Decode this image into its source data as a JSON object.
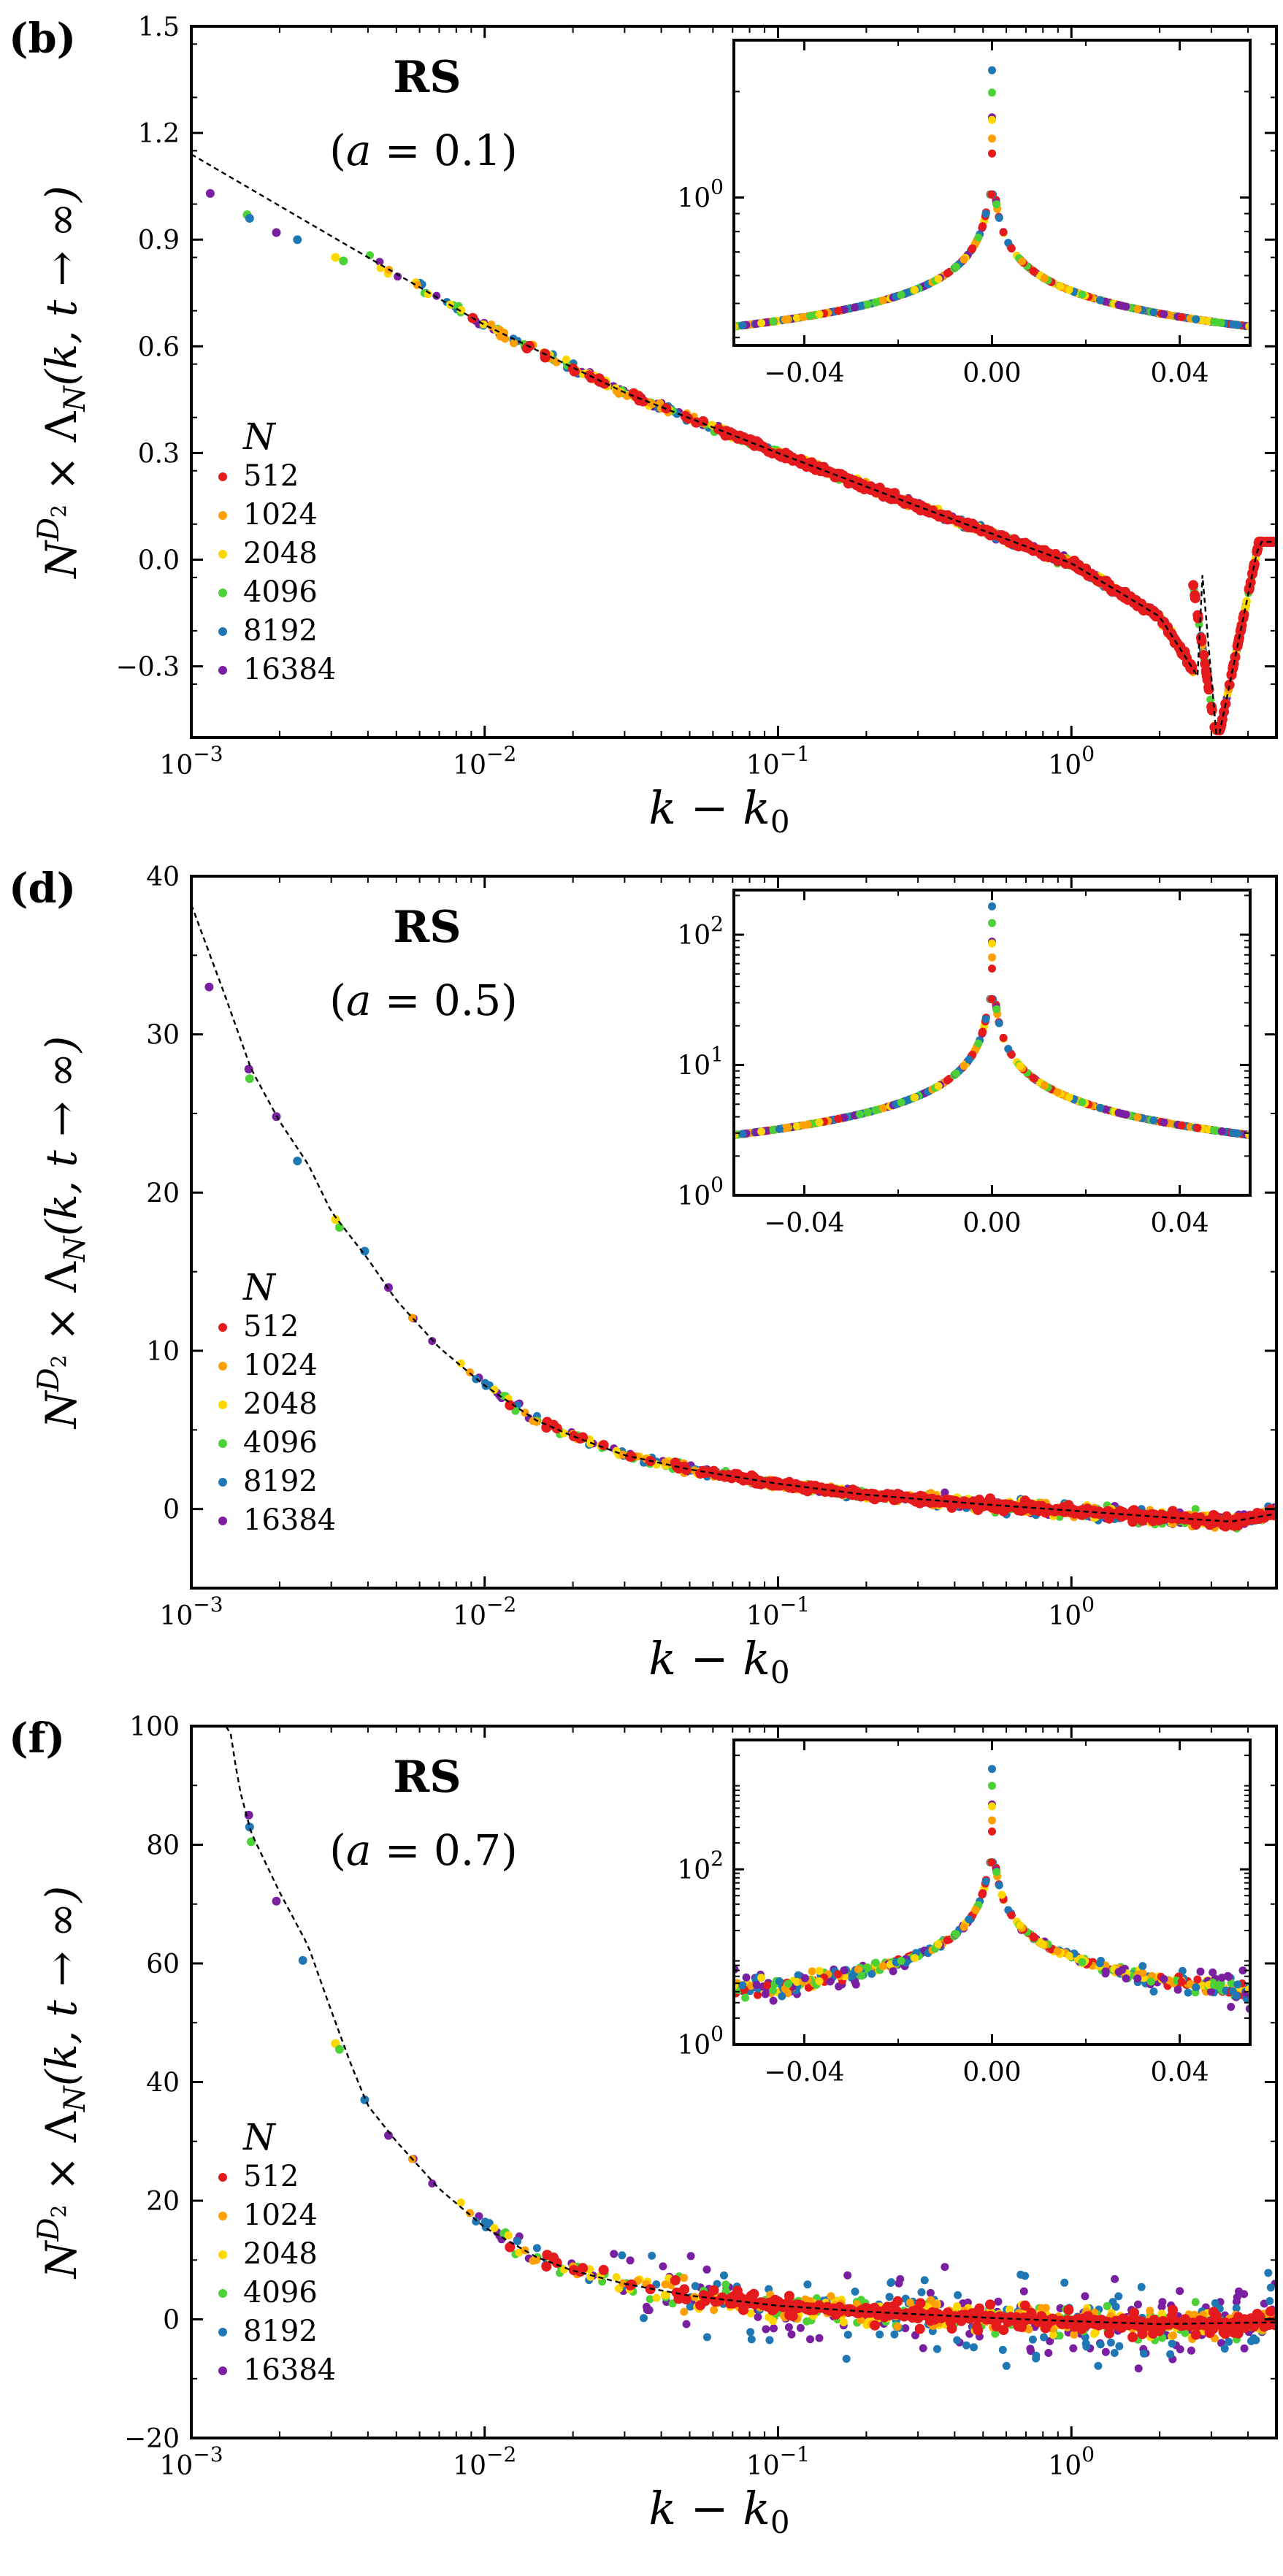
{
  "figure": {
    "xlabel": "k − k₀",
    "ylabel": "N^{D₂} × Λ_N(k, t → ∞)",
    "ylabel_parts": {
      "base": "N",
      "sup": "D",
      "subsup": "2",
      "rest": " × Λ",
      "sub": "N",
      "args": "(k, t → ∞)"
    },
    "xlabel_parts": {
      "main": "k − k",
      "sub": "0"
    },
    "legend_title": "N",
    "series": [
      {
        "N": "512",
        "color": "#e41a1c"
      },
      {
        "N": "1024",
        "color": "#ff9f00"
      },
      {
        "N": "2048",
        "color": "#ffd700"
      },
      {
        "N": "4096",
        "color": "#4cd137"
      },
      {
        "N": "8192",
        "color": "#1f77b4"
      },
      {
        "N": "16384",
        "color": "#7a1fa2"
      }
    ]
  },
  "chart_data": [
    {
      "panel": "(b)",
      "type": "scatter",
      "title": "RS",
      "subtitle": "(a = 0.1)",
      "xscale": "log",
      "xlim": [
        0.001,
        5
      ],
      "ylim": [
        -0.5,
        1.5
      ],
      "xticks": [
        {
          "v": 0.001,
          "b": "10",
          "e": "−3"
        },
        {
          "v": 0.01,
          "b": "10",
          "e": "−2"
        },
        {
          "v": 0.1,
          "b": "10",
          "e": "−1"
        },
        {
          "v": 1,
          "b": "10",
          "e": "0"
        }
      ],
      "yticks": [
        {
          "v": 1.5,
          "label": "1.5"
        },
        {
          "v": 1.2,
          "label": "1.2"
        },
        {
          "v": 0.9,
          "label": "0.9"
        },
        {
          "v": 0.6,
          "label": "0.6"
        },
        {
          "v": 0.3,
          "label": "0.3"
        },
        {
          "v": 0,
          "label": "0.0"
        },
        {
          "v": -0.3,
          "label": "−0.3"
        }
      ],
      "curve": {
        "type": "log_linear",
        "a": 0.16,
        "b": -0.33,
        "dip": 3.14,
        "dip_depth": -0.45
      },
      "fit_line": [
        [
          0.001,
          1.14
        ],
        [
          0.003,
          0.91
        ],
        [
          0.01,
          0.66
        ],
        [
          0.03,
          0.47
        ],
        [
          0.1,
          0.3
        ],
        [
          0.3,
          0.15
        ],
        [
          1.0,
          -0.01
        ],
        [
          2.0,
          -0.16
        ],
        [
          2.8,
          -0.35
        ],
        [
          3.14,
          -0.52
        ]
      ],
      "early_points": [
        {
          "x": 0.00116,
          "y": 1.03,
          "s": 5
        },
        {
          "x": 0.00155,
          "y": 0.97,
          "s": 3
        },
        {
          "x": 0.00158,
          "y": 0.96,
          "s": 4
        },
        {
          "x": 0.00195,
          "y": 0.92,
          "s": 5
        },
        {
          "x": 0.0023,
          "y": 0.9,
          "s": 4
        },
        {
          "x": 0.0031,
          "y": 0.85,
          "s": 2
        },
        {
          "x": 0.0033,
          "y": 0.84,
          "s": 3
        }
      ],
      "inset": {
        "xlim": [
          -0.055,
          0.055
        ],
        "yscale": "log",
        "ylim": [
          0.38,
          2.8
        ],
        "xticks": [
          {
            "v": -0.04,
            "label": "−0.04"
          },
          {
            "v": 0,
            "label": "0.00"
          },
          {
            "v": 0.04,
            "label": "0.04"
          }
        ],
        "yticks": [
          {
            "v": 1,
            "b": "10",
            "e": "0"
          }
        ],
        "peak": 2.3,
        "base": 1.02,
        "edge": 0.43,
        "noise": 0.0
      }
    },
    {
      "panel": "(d)",
      "type": "scatter",
      "title": "RS",
      "subtitle": "(a = 0.5)",
      "xscale": "log",
      "xlim": [
        0.001,
        5
      ],
      "ylim": [
        -5,
        40
      ],
      "xticks": [
        {
          "v": 0.001,
          "b": "10",
          "e": "−3"
        },
        {
          "v": 0.01,
          "b": "10",
          "e": "−2"
        },
        {
          "v": 0.1,
          "b": "10",
          "e": "−1"
        },
        {
          "v": 1,
          "b": "10",
          "e": "0"
        }
      ],
      "yticks": [
        {
          "v": 40,
          "label": "40"
        },
        {
          "v": 30,
          "label": "30"
        },
        {
          "v": 20,
          "label": "20"
        },
        {
          "v": 10,
          "label": "10"
        },
        {
          "v": 0,
          "label": "0"
        }
      ],
      "fit_line": [
        [
          0.001,
          38.2
        ],
        [
          0.0013,
          32.5
        ],
        [
          0.0016,
          27.8
        ],
        [
          0.002,
          24.5
        ],
        [
          0.0025,
          21.8
        ],
        [
          0.003,
          18.8
        ],
        [
          0.004,
          15.8
        ],
        [
          0.005,
          13.2
        ],
        [
          0.007,
          10.2
        ],
        [
          0.01,
          7.8
        ],
        [
          0.015,
          5.6
        ],
        [
          0.02,
          4.6
        ],
        [
          0.03,
          3.4
        ],
        [
          0.05,
          2.5
        ],
        [
          0.1,
          1.6
        ],
        [
          0.2,
          0.9
        ],
        [
          0.5,
          0.3
        ],
        [
          1,
          -0.1
        ],
        [
          2,
          -0.5
        ],
        [
          3.5,
          -0.8
        ],
        [
          5,
          -0.3
        ]
      ],
      "early_points": [
        {
          "x": 0.00115,
          "y": 33.0,
          "s": 5
        },
        {
          "x": 0.00157,
          "y": 27.8,
          "s": 5
        },
        {
          "x": 0.00158,
          "y": 27.2,
          "s": 3
        },
        {
          "x": 0.00195,
          "y": 24.8,
          "s": 5
        },
        {
          "x": 0.0023,
          "y": 22.0,
          "s": 4
        },
        {
          "x": 0.0031,
          "y": 18.3,
          "s": 2
        },
        {
          "x": 0.0032,
          "y": 17.8,
          "s": 3
        },
        {
          "x": 0.0039,
          "y": 16.3,
          "s": 4
        },
        {
          "x": 0.0047,
          "y": 14.0,
          "s": 5
        }
      ],
      "inset": {
        "xlim": [
          -0.055,
          0.055
        ],
        "yscale": "log",
        "ylim": [
          1,
          220
        ],
        "xticks": [
          {
            "v": -0.04,
            "label": "−0.04"
          },
          {
            "v": 0,
            "label": "0.00"
          },
          {
            "v": 0.04,
            "label": "0.04"
          }
        ],
        "yticks": [
          {
            "v": 100,
            "b": "10",
            "e": "2"
          },
          {
            "v": 10,
            "b": "10",
            "e": "1"
          },
          {
            "v": 1,
            "b": "10",
            "e": "0"
          }
        ],
        "peak": 165,
        "base": 32,
        "edge": 2.9,
        "noise": 0.0
      }
    },
    {
      "panel": "(f)",
      "type": "scatter",
      "title": "RS",
      "subtitle": "(a = 0.7)",
      "xscale": "log",
      "xlim": [
        0.001,
        5
      ],
      "ylim": [
        -20,
        100
      ],
      "xticks": [
        {
          "v": 0.001,
          "b": "10",
          "e": "−3"
        },
        {
          "v": 0.01,
          "b": "10",
          "e": "−2"
        },
        {
          "v": 0.1,
          "b": "10",
          "e": "−1"
        },
        {
          "v": 1,
          "b": "10",
          "e": "0"
        }
      ],
      "yticks": [
        {
          "v": 100,
          "label": "100"
        },
        {
          "v": 80,
          "label": "80"
        },
        {
          "v": 60,
          "label": "60"
        },
        {
          "v": 40,
          "label": "40"
        },
        {
          "v": 20,
          "label": "20"
        },
        {
          "v": 0,
          "label": "0"
        },
        {
          "v": -20,
          "label": "−20"
        }
      ],
      "fit_line": [
        [
          0.00135,
          100
        ],
        [
          0.00145,
          90
        ],
        [
          0.0016,
          82
        ],
        [
          0.002,
          72
        ],
        [
          0.0025,
          63
        ],
        [
          0.003,
          52
        ],
        [
          0.0035,
          43
        ],
        [
          0.004,
          36
        ],
        [
          0.005,
          30
        ],
        [
          0.007,
          22
        ],
        [
          0.01,
          15.5
        ],
        [
          0.015,
          10.5
        ],
        [
          0.02,
          8.2
        ],
        [
          0.03,
          6.0
        ],
        [
          0.05,
          4.0
        ],
        [
          0.1,
          2.3
        ],
        [
          0.2,
          1.3
        ],
        [
          0.5,
          0.3
        ],
        [
          1,
          -0.3
        ],
        [
          2,
          -0.8
        ],
        [
          5,
          -0.5
        ]
      ],
      "early_points": [
        {
          "x": 0.00157,
          "y": 85.0,
          "s": 5
        },
        {
          "x": 0.00158,
          "y": 83.0,
          "s": 4
        },
        {
          "x": 0.0016,
          "y": 80.5,
          "s": 3
        },
        {
          "x": 0.00195,
          "y": 70.5,
          "s": 5
        },
        {
          "x": 0.0024,
          "y": 60.5,
          "s": 4
        },
        {
          "x": 0.0031,
          "y": 46.5,
          "s": 2
        },
        {
          "x": 0.0032,
          "y": 45.5,
          "s": 3
        },
        {
          "x": 0.0039,
          "y": 37.0,
          "s": 4
        },
        {
          "x": 0.0047,
          "y": 31.0,
          "s": 5
        }
      ],
      "inset": {
        "xlim": [
          -0.055,
          0.055
        ],
        "yscale": "log",
        "ylim": [
          1,
          3000
        ],
        "xticks": [
          {
            "v": -0.04,
            "label": "−0.04"
          },
          {
            "v": 0,
            "label": "0.00"
          },
          {
            "v": 0.04,
            "label": "0.04"
          }
        ],
        "yticks": [
          {
            "v": 100,
            "b": "10",
            "e": "2"
          },
          {
            "v": 1,
            "b": "10",
            "e": "0"
          }
        ],
        "peak": 1400,
        "base": 120,
        "edge": 4.0,
        "noise": 0.35
      }
    }
  ]
}
